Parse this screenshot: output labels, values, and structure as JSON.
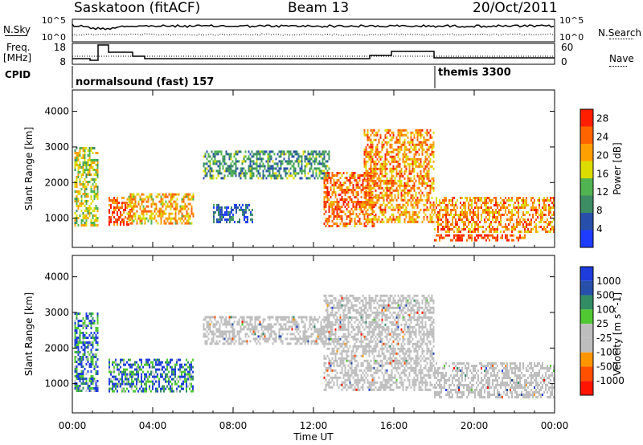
{
  "header": {
    "station": "Saskatoon (fitACF)",
    "beam": "Beam 13",
    "date": "20/Oct/2011"
  },
  "left_labels": {
    "nsky": "N.Sky",
    "freq_line1": "Freq.",
    "freq_line2": "[MHz]",
    "cpid": "CPID"
  },
  "right_labels": {
    "nsearch": "N.Search",
    "nave": "Nave"
  },
  "tick_labels": {
    "noise_top": "10^5",
    "noise_bottom": "10^0",
    "freq_top": "18",
    "freq_bottom": "8",
    "nave_top": "60",
    "nave_bottom": "0"
  },
  "cpid_labels": [
    {
      "text": "normalsound (fast) 157",
      "start_hour": 0
    },
    {
      "text": "themis 3300",
      "start_hour": 18
    }
  ],
  "x_axis": {
    "label": "Time UT",
    "ticks": [
      "00:00",
      "04:00",
      "08:00",
      "12:00",
      "16:00",
      "20:00",
      "00:00"
    ]
  },
  "colors": {
    "power": [
      "#1e3cff",
      "#2850aa",
      "#3c8c64",
      "#50b450",
      "#dcdc00",
      "#ffa000",
      "#ff6400",
      "#ff1e00"
    ],
    "velocity": [
      "#ff1400",
      "#ff5000",
      "#ff9600",
      "#bebebe",
      "#bebebe",
      "#50c832",
      "#328c64",
      "#2850aa",
      "#1e3cdc"
    ]
  },
  "chart_data": [
    {
      "type": "heatmap",
      "title": "",
      "quantity": "Power",
      "ylabel": "Slant Range [km]",
      "xlabel": "Time UT",
      "xlim_hours": [
        0,
        24
      ],
      "ylim_km": [
        180,
        4600
      ],
      "yticks": [
        1000,
        2000,
        3000,
        4000
      ],
      "colorbar": {
        "label": "Power [dB]",
        "ticks": [
          4,
          8,
          12,
          16,
          20,
          24,
          28
        ],
        "range": [
          0,
          30
        ]
      },
      "echo_regions": [
        {
          "start": 0.1,
          "end": 1.3,
          "r_low": 800,
          "r_high": 3000,
          "value": 16
        },
        {
          "start": 1.8,
          "end": 3.0,
          "r_low": 800,
          "r_high": 1600,
          "value": 26
        },
        {
          "start": 2.7,
          "end": 6.0,
          "r_low": 850,
          "r_high": 1700,
          "value": 20
        },
        {
          "start": 6.5,
          "end": 12.8,
          "r_low": 2100,
          "r_high": 2900,
          "value": 10
        },
        {
          "start": 7.0,
          "end": 9.0,
          "r_low": 900,
          "r_high": 1400,
          "value": 6
        },
        {
          "start": 12.5,
          "end": 15.0,
          "r_low": 800,
          "r_high": 2300,
          "value": 24
        },
        {
          "start": 14.5,
          "end": 18.0,
          "r_low": 900,
          "r_high": 3500,
          "value": 22
        },
        {
          "start": 18.0,
          "end": 24.0,
          "r_low": 600,
          "r_high": 1600,
          "value": 22
        },
        {
          "start": 18.0,
          "end": 22.5,
          "r_low": 350,
          "r_high": 550,
          "value": 26
        }
      ]
    },
    {
      "type": "heatmap",
      "title": "",
      "quantity": "Velocity",
      "ylabel": "Slant Range [km]",
      "xlabel": "Time UT",
      "xlim_hours": [
        0,
        24
      ],
      "ylim_km": [
        180,
        4600
      ],
      "yticks": [
        1000,
        2000,
        3000,
        4000
      ],
      "colorbar": {
        "label": "Velocity [m s^-1]",
        "ticks": [
          "1000",
          "500",
          "100",
          "25",
          "-25",
          "-100",
          "-500",
          "-1000"
        ]
      },
      "echo_regions": [
        {
          "start": 0.1,
          "end": 1.3,
          "r_low": 800,
          "r_high": 3000,
          "value": 100
        },
        {
          "start": 1.8,
          "end": 6.0,
          "r_low": 800,
          "r_high": 1700,
          "value": 500
        },
        {
          "start": 6.5,
          "end": 12.8,
          "r_low": 2100,
          "r_high": 2900,
          "value": 0
        },
        {
          "start": 12.5,
          "end": 18.0,
          "r_low": 800,
          "r_high": 3500,
          "value": 0
        },
        {
          "start": 18.0,
          "end": 24.0,
          "r_low": 600,
          "r_high": 1600,
          "value": 0
        }
      ]
    }
  ]
}
